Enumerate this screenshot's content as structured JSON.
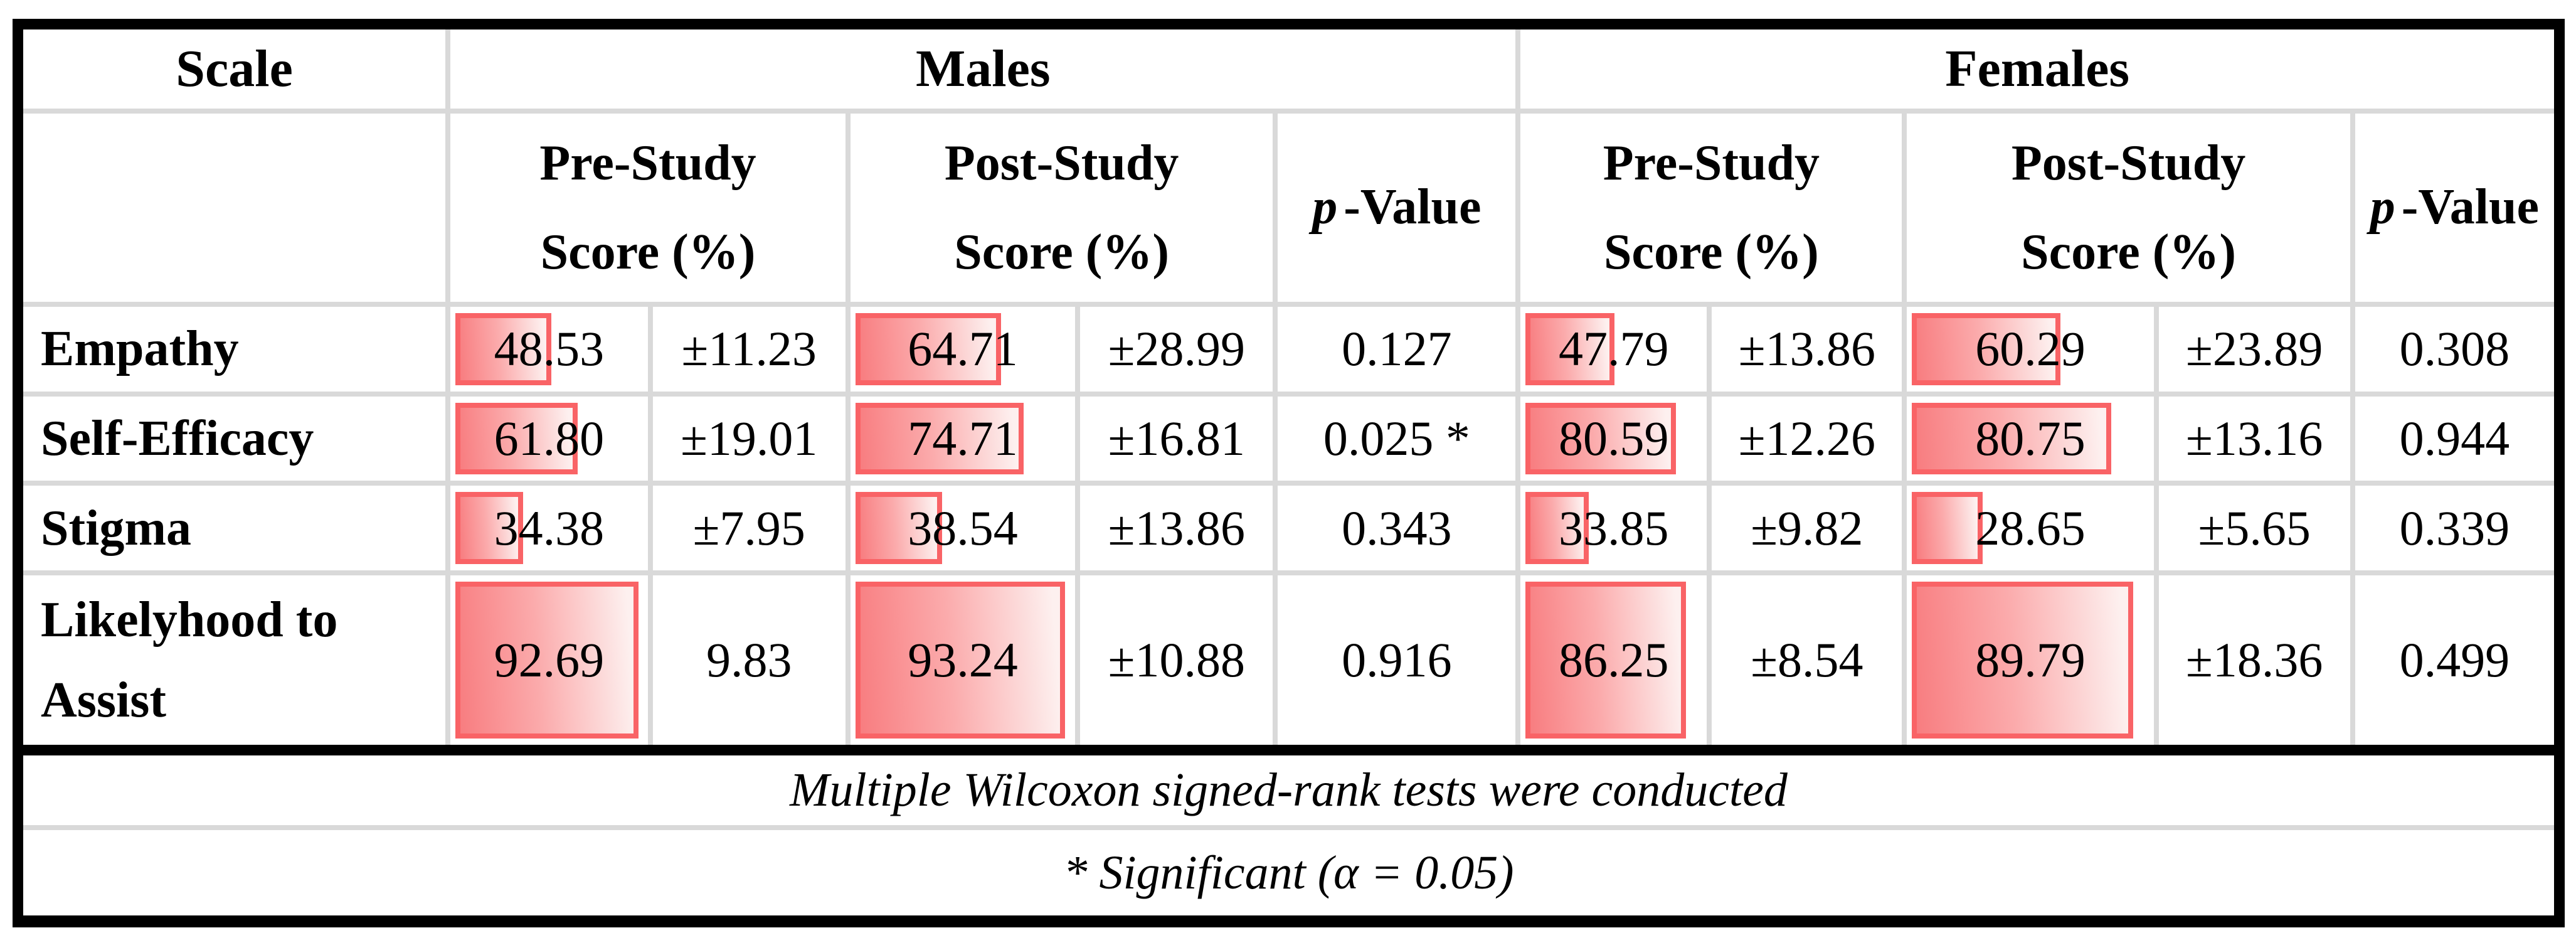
{
  "header": {
    "scale": "Scale",
    "males": "Males",
    "females": "Females",
    "pre_line1": "Pre-Study",
    "pre_line2": "Score (%)",
    "post_line1": "Post-Study",
    "post_line2": "Score (%)",
    "p_italic": "p",
    "p_rest": "-Value"
  },
  "rows": [
    {
      "scale": "Empathy",
      "m_pre": "48.53",
      "m_pre_bar": 48.53,
      "m_pre_sd": "±11.23",
      "m_post": "64.71",
      "m_post_bar": 64.71,
      "m_post_sd": "±28.99",
      "m_p": "0.127",
      "f_pre": "47.79",
      "f_pre_bar": 47.79,
      "f_pre_sd": "±13.86",
      "f_post": "60.29",
      "f_post_bar": 60.29,
      "f_post_sd": "±23.89",
      "f_p": "0.308"
    },
    {
      "scale": "Self-Efficacy",
      "m_pre": "61.80",
      "m_pre_bar": 61.8,
      "m_pre_sd": "±19.01",
      "m_post": "74.71",
      "m_post_bar": 74.71,
      "m_post_sd": "±16.81",
      "m_p": "0.025 *",
      "f_pre": "80.59",
      "f_pre_bar": 80.59,
      "f_pre_sd": "±12.26",
      "f_post": "80.75",
      "f_post_bar": 80.75,
      "f_post_sd": "±13.16",
      "f_p": "0.944"
    },
    {
      "scale": "Stigma",
      "m_pre": "34.38",
      "m_pre_bar": 34.38,
      "m_pre_sd": "±7.95",
      "m_post": "38.54",
      "m_post_bar": 38.54,
      "m_post_sd": "±13.86",
      "m_p": "0.343",
      "f_pre": "33.85",
      "f_pre_bar": 33.85,
      "f_pre_sd": "±9.82",
      "f_post": "28.65",
      "f_post_bar": 28.65,
      "f_post_sd": "±5.65",
      "f_p": "0.339"
    },
    {
      "scale": "Likelyhood to Assist",
      "m_pre": "92.69",
      "m_pre_bar": 92.69,
      "m_pre_sd": "9.83",
      "m_post": "93.24",
      "m_post_bar": 93.24,
      "m_post_sd": "±10.88",
      "m_p": "0.916",
      "f_pre": "86.25",
      "f_pre_bar": 86.25,
      "f_pre_sd": "±8.54",
      "f_post": "89.79",
      "f_post_bar": 89.79,
      "f_post_sd": "±18.36",
      "f_p": "0.499"
    }
  ],
  "footnotes": {
    "line1": "Multiple Wilcoxon signed-rank tests were conducted",
    "line2": "* Significant (α = 0.05)"
  },
  "colors": {
    "bar_border": "#f96366",
    "bar_fill_left": "#f87d80",
    "bar_fill_right": "#fdf0ef",
    "grid_line": "#d9d9d9",
    "frame": "#000000"
  }
}
